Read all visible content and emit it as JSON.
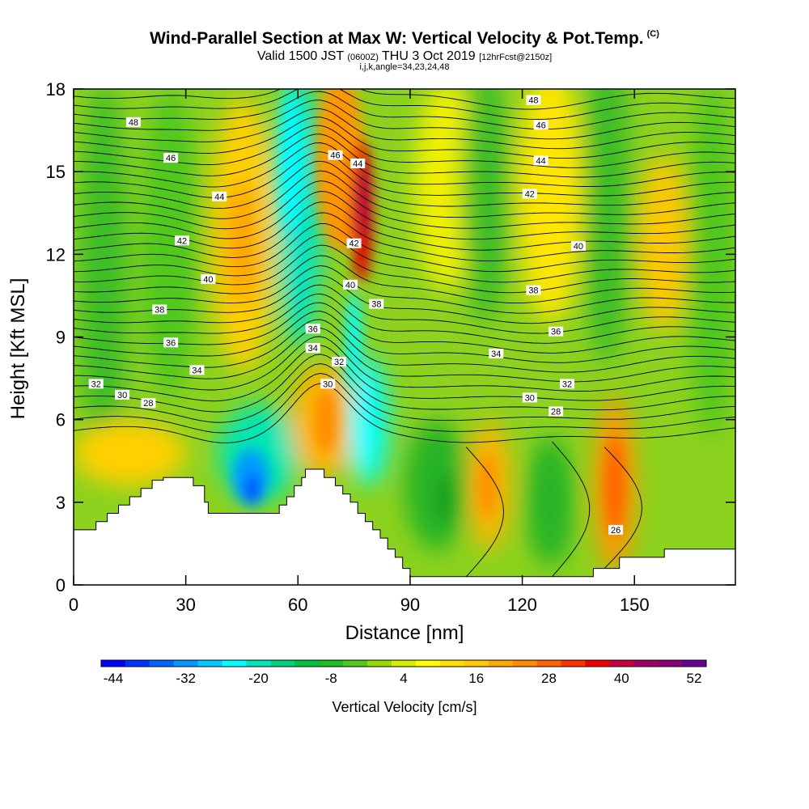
{
  "chart_data": {
    "type": "heatmap",
    "title": "Wind-Parallel Section at Max W: Vertical Velocity & Pot.Temp.",
    "title_mark": "(C)",
    "subtitle_main": "Valid 1500 JST",
    "subtitle_utc": "(0600Z)",
    "subtitle_date": "THU 3 Oct 2019",
    "subtitle_fcst": "[12hrFcst@2150z]",
    "subtitle2": "i,j,k,angle=34,23,24,48",
    "xlabel": "Distance [nm]",
    "ylabel": "Height [Kft MSL]",
    "xlim": [
      0,
      177
    ],
    "ylim": [
      0,
      18
    ],
    "x_ticks": [
      0,
      30,
      60,
      90,
      120,
      150
    ],
    "y_ticks": [
      0,
      3,
      6,
      9,
      12,
      15,
      18
    ],
    "colorbar": {
      "label": "Vertical Velocity [cm/s]",
      "tick_labels": [
        "-44",
        "-32",
        "-20",
        "-8",
        "4",
        "16",
        "28",
        "40",
        "52"
      ],
      "colors": [
        "#0000ff",
        "#0033ff",
        "#0066ff",
        "#0099ff",
        "#00ccff",
        "#00ffff",
        "#00e6b8",
        "#00d27a",
        "#00c040",
        "#1ebe1e",
        "#50c81e",
        "#96dc00",
        "#d2f000",
        "#ffff00",
        "#ffe100",
        "#ffc800",
        "#ffaa00",
        "#ff8c00",
        "#ff6400",
        "#ff3200",
        "#f00000",
        "#c8003c",
        "#a00064",
        "#8c0078",
        "#640096"
      ]
    },
    "updraft_cores": [
      {
        "x": 78,
        "y": 13.5,
        "w": 50
      },
      {
        "x": 77,
        "y": 16.0,
        "w": 26
      },
      {
        "x": 47,
        "y": 12.0,
        "w": 18
      },
      {
        "x": 68,
        "y": 6.0,
        "w": 22
      },
      {
        "x": 110,
        "y": 3.5,
        "w": 20
      },
      {
        "x": 146,
        "y": 3.8,
        "w": 30
      },
      {
        "x": 158,
        "y": 12.5,
        "w": 14
      },
      {
        "x": 27,
        "y": 4.8,
        "w": 10
      },
      {
        "x": 118,
        "y": 14.0,
        "w": 8
      }
    ],
    "downdraft_cores": [
      {
        "x": 49,
        "y": 3.8,
        "w": -44
      },
      {
        "x": 60,
        "y": 14.0,
        "w": -20
      },
      {
        "x": 79,
        "y": 6.5,
        "w": -20
      },
      {
        "x": 100,
        "y": 3.0,
        "w": -8
      },
      {
        "x": 20,
        "y": 11.0,
        "w": -8
      },
      {
        "x": 136,
        "y": 3.5,
        "w": -8
      }
    ],
    "isentrope_labels": [
      {
        "x": 16,
        "y": 16.8,
        "label": "48"
      },
      {
        "x": 26,
        "y": 15.5,
        "label": "46"
      },
      {
        "x": 39,
        "y": 14.1,
        "label": "44"
      },
      {
        "x": 29,
        "y": 12.5,
        "label": "42"
      },
      {
        "x": 36,
        "y": 11.1,
        "label": "40"
      },
      {
        "x": 23,
        "y": 10.0,
        "label": "38"
      },
      {
        "x": 26,
        "y": 8.8,
        "label": "36"
      },
      {
        "x": 33,
        "y": 7.8,
        "label": "34"
      },
      {
        "x": 6,
        "y": 7.3,
        "label": "32"
      },
      {
        "x": 13,
        "y": 6.9,
        "label": "30"
      },
      {
        "x": 20,
        "y": 6.6,
        "label": "28"
      },
      {
        "x": 70,
        "y": 15.6,
        "label": "46"
      },
      {
        "x": 76,
        "y": 15.3,
        "label": "44"
      },
      {
        "x": 75,
        "y": 12.4,
        "label": "42"
      },
      {
        "x": 74,
        "y": 10.9,
        "label": "40"
      },
      {
        "x": 81,
        "y": 10.2,
        "label": "38"
      },
      {
        "x": 64,
        "y": 9.3,
        "label": "36"
      },
      {
        "x": 64,
        "y": 8.6,
        "label": "34"
      },
      {
        "x": 71,
        "y": 8.1,
        "label": "32"
      },
      {
        "x": 68,
        "y": 7.3,
        "label": "30"
      },
      {
        "x": 123,
        "y": 17.6,
        "label": "48"
      },
      {
        "x": 125,
        "y": 16.7,
        "label": "46"
      },
      {
        "x": 125,
        "y": 15.4,
        "label": "44"
      },
      {
        "x": 122,
        "y": 14.2,
        "label": "42"
      },
      {
        "x": 135,
        "y": 12.3,
        "label": "40"
      },
      {
        "x": 123,
        "y": 10.7,
        "label": "38"
      },
      {
        "x": 129,
        "y": 9.2,
        "label": "36"
      },
      {
        "x": 113,
        "y": 8.4,
        "label": "34"
      },
      {
        "x": 132,
        "y": 7.3,
        "label": "32"
      },
      {
        "x": 122,
        "y": 6.8,
        "label": "30"
      },
      {
        "x": 129,
        "y": 6.3,
        "label": "28"
      },
      {
        "x": 145,
        "y": 2.0,
        "label": "26"
      }
    ],
    "terrain": [
      [
        0,
        2
      ],
      [
        6,
        2
      ],
      [
        6,
        2.3
      ],
      [
        9,
        2.3
      ],
      [
        9,
        2.6
      ],
      [
        12,
        2.6
      ],
      [
        12,
        2.9
      ],
      [
        15,
        2.9
      ],
      [
        15,
        3.2
      ],
      [
        18,
        3.2
      ],
      [
        18,
        3.5
      ],
      [
        21,
        3.5
      ],
      [
        21,
        3.8
      ],
      [
        24,
        3.8
      ],
      [
        24,
        3.9
      ],
      [
        32,
        3.9
      ],
      [
        32,
        3.6
      ],
      [
        35,
        3.6
      ],
      [
        35,
        3.0
      ],
      [
        36,
        3.0
      ],
      [
        36,
        2.6
      ],
      [
        55,
        2.6
      ],
      [
        55,
        2.9
      ],
      [
        57,
        2.9
      ],
      [
        57,
        3.2
      ],
      [
        59,
        3.2
      ],
      [
        59,
        3.6
      ],
      [
        61,
        3.6
      ],
      [
        61,
        3.9
      ],
      [
        62,
        3.9
      ],
      [
        62,
        4.2
      ],
      [
        67,
        4.2
      ],
      [
        67,
        3.9
      ],
      [
        70,
        3.9
      ],
      [
        70,
        3.6
      ],
      [
        72,
        3.6
      ],
      [
        72,
        3.3
      ],
      [
        74,
        3.3
      ],
      [
        74,
        3.0
      ],
      [
        76,
        3.0
      ],
      [
        76,
        2.6
      ],
      [
        78,
        2.6
      ],
      [
        78,
        2.3
      ],
      [
        80,
        2.3
      ],
      [
        80,
        2.0
      ],
      [
        82,
        2.0
      ],
      [
        82,
        1.7
      ],
      [
        84,
        1.7
      ],
      [
        84,
        1.3
      ],
      [
        86,
        1.3
      ],
      [
        86,
        1.0
      ],
      [
        88,
        1.0
      ],
      [
        88,
        0.6
      ],
      [
        90,
        0.6
      ],
      [
        90,
        0.3
      ],
      [
        139,
        0.3
      ],
      [
        139,
        0.6
      ],
      [
        146,
        0.6
      ],
      [
        146,
        1.0
      ],
      [
        158,
        1.0
      ],
      [
        158,
        1.3
      ],
      [
        177,
        1.3
      ]
    ]
  }
}
